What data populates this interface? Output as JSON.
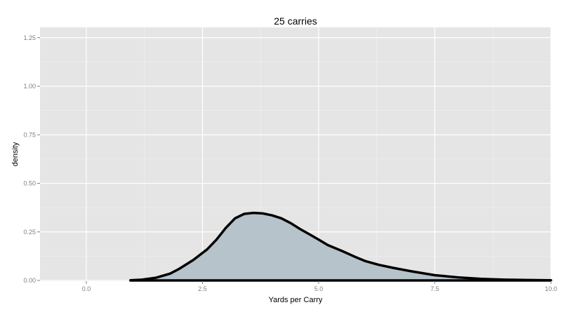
{
  "chart_data": {
    "type": "area",
    "title": "25 carries",
    "xlabel": "Yards per Carry",
    "ylabel": "density",
    "xlim": [
      -1,
      10
    ],
    "ylim": [
      0,
      1.3
    ],
    "x_ticks": [
      0,
      2.5,
      5,
      7.5,
      10
    ],
    "x_tick_labels": [
      "0.0",
      "2.5",
      "5.0",
      "7.5",
      "10.0"
    ],
    "y_ticks": [
      0,
      0.25,
      0.5,
      0.75,
      1,
      1.25
    ],
    "y_tick_labels": [
      "0.00",
      "0.25",
      "0.50",
      "0.75",
      "1.00",
      "1.25"
    ],
    "grid": true,
    "fill_color": "#b7c3ca",
    "line_color": "#000000",
    "panel_background": "#e5e5e5",
    "series": [
      {
        "name": "density",
        "x": [
          0.95,
          1.2,
          1.5,
          1.8,
          2.0,
          2.3,
          2.6,
          2.8,
          3.0,
          3.2,
          3.4,
          3.6,
          3.8,
          4.0,
          4.2,
          4.4,
          4.6,
          4.8,
          5.0,
          5.2,
          5.5,
          5.8,
          6.0,
          6.3,
          6.6,
          7.0,
          7.5,
          8.0,
          8.5,
          9.0,
          9.5,
          10.0
        ],
        "y": [
          0.001,
          0.004,
          0.014,
          0.035,
          0.06,
          0.105,
          0.16,
          0.21,
          0.27,
          0.32,
          0.343,
          0.348,
          0.345,
          0.335,
          0.32,
          0.295,
          0.265,
          0.238,
          0.21,
          0.182,
          0.152,
          0.12,
          0.1,
          0.08,
          0.065,
          0.047,
          0.027,
          0.016,
          0.008,
          0.004,
          0.002,
          0.001
        ]
      }
    ]
  }
}
